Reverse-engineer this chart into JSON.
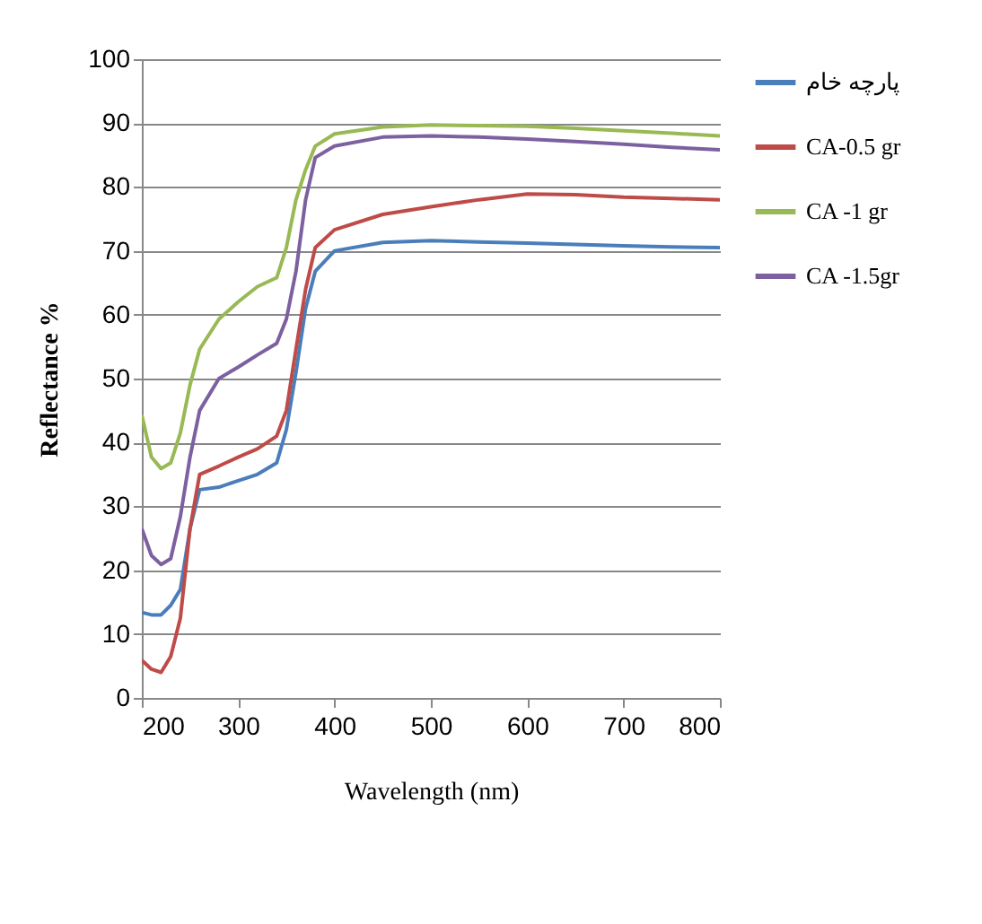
{
  "chart_data": {
    "type": "line",
    "xlabel": "Wavelength (nm)",
    "ylabel": "Reflectance %",
    "x": [
      200,
      210,
      220,
      230,
      240,
      250,
      260,
      280,
      300,
      320,
      340,
      350,
      360,
      370,
      380,
      400,
      450,
      500,
      550,
      600,
      650,
      700,
      750,
      800
    ],
    "series": [
      {
        "name": "پارچه خام",
        "color": "#4a7ebb",
        "values": [
          13.4,
          13,
          13,
          14.5,
          17,
          26.5,
          32.6,
          33,
          34,
          35,
          36.8,
          42,
          51,
          61,
          66.8,
          70,
          71.3,
          71.6,
          71.4,
          71.2,
          71,
          70.8,
          70.6,
          70.5
        ]
      },
      {
        "name": "CA-0.5 gr",
        "color": "#be4b48",
        "values": [
          5.9,
          4.5,
          4,
          6.5,
          12.5,
          26.5,
          35,
          36.3,
          37.7,
          39,
          41,
          45,
          54.6,
          64,
          70.5,
          73.3,
          75.7,
          76.9,
          78,
          78.9,
          78.8,
          78.4,
          78.2,
          78
        ]
      },
      {
        "name": "CA -1 gr",
        "color": "#98b954",
        "values": [
          44.3,
          37.7,
          35.9,
          36.8,
          41.5,
          49,
          54.6,
          59.3,
          62,
          64.4,
          65.8,
          70.5,
          78,
          82.7,
          86.4,
          88.3,
          89.4,
          89.7,
          89.6,
          89.5,
          89.2,
          88.8,
          88.4,
          88
        ]
      },
      {
        "name": "CA -1.5gr",
        "color": "#7d60a0",
        "values": [
          26.5,
          22.3,
          20.9,
          21.8,
          28.4,
          37.7,
          45,
          50,
          51.8,
          53.7,
          55.5,
          59.3,
          66.8,
          78,
          84.6,
          86.4,
          87.8,
          88,
          87.8,
          87.5,
          87.1,
          86.7,
          86.2,
          85.8
        ]
      }
    ],
    "xlim": [
      200,
      800
    ],
    "xticks": [
      200,
      300,
      400,
      500,
      600,
      700,
      800
    ],
    "ylim": [
      0,
      100
    ],
    "yticks": [
      0,
      10,
      20,
      30,
      40,
      50,
      60,
      70,
      80,
      90,
      100
    ],
    "grid": "y",
    "legend": "right",
    "marker": "none",
    "line_style": "solid"
  }
}
